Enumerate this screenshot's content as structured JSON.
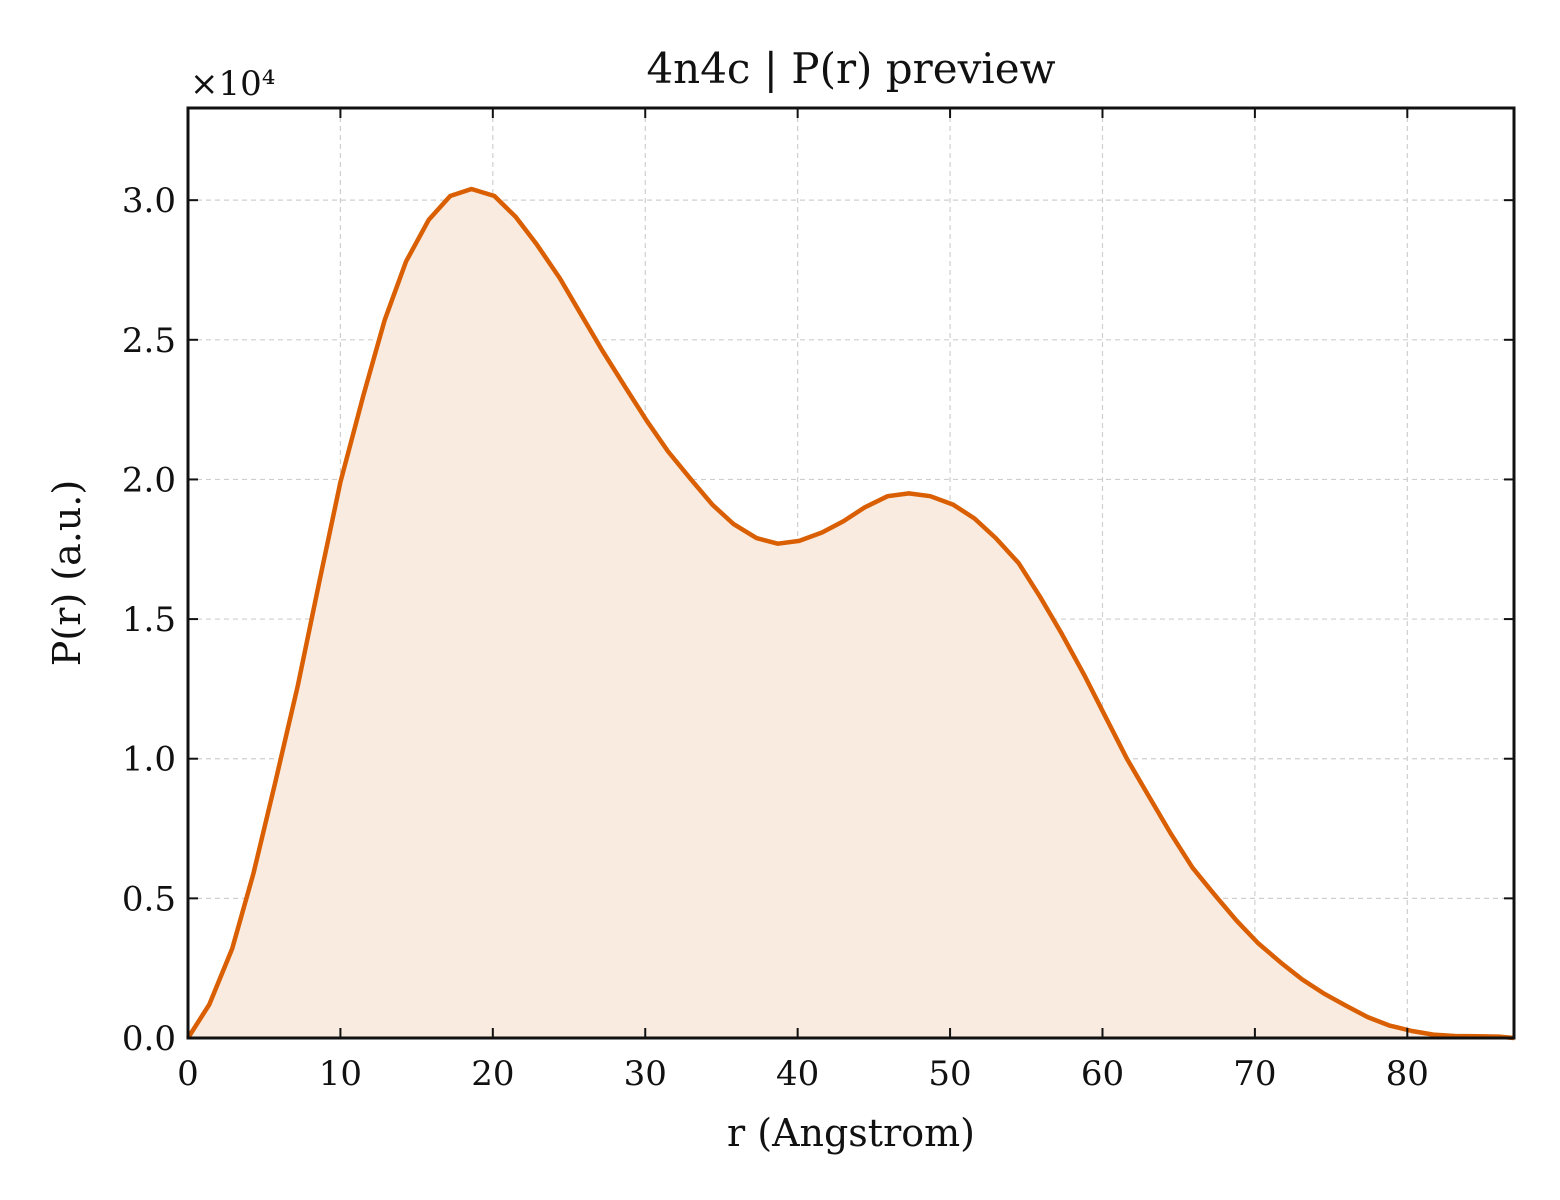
{
  "chart_data": {
    "type": "area",
    "title": "4n4c | P(r) preview",
    "xlabel": "r (Angstrom)",
    "ylabel": "P(r) (a.u.)",
    "offset_text": "×10⁴",
    "xlim": [
      0,
      87
    ],
    "ylim": [
      0,
      33300
    ],
    "x_ticks": [
      0,
      10,
      20,
      30,
      40,
      50,
      60,
      70,
      80
    ],
    "x_tick_labels": [
      "0",
      "10",
      "20",
      "30",
      "40",
      "50",
      "60",
      "70",
      "80"
    ],
    "y_ticks": [
      0,
      5000,
      10000,
      15000,
      20000,
      25000,
      30000
    ],
    "y_tick_labels": [
      "0.0",
      "0.5",
      "1.0",
      "1.5",
      "2.0",
      "2.5",
      "3.0"
    ],
    "grid": true,
    "colors": {
      "line": "#d95f02",
      "fill": "#f9ebe0"
    },
    "series": [
      {
        "x": [
          0,
          1.4,
          2.9,
          4.3,
          5.7,
          7.2,
          8.6,
          10.0,
          11.5,
          12.9,
          14.3,
          15.8,
          17.2,
          18.6,
          20.1,
          21.5,
          22.9,
          24.4,
          25.8,
          27.2,
          28.7,
          30.1,
          31.5,
          33.0,
          34.4,
          35.8,
          37.3,
          38.7,
          40.1,
          41.6,
          43.0,
          44.4,
          45.9,
          47.3,
          48.7,
          50.2,
          51.6,
          53.0,
          54.5,
          55.9,
          57.3,
          58.8,
          60.2,
          61.6,
          63.1,
          64.5,
          65.9,
          67.4,
          68.8,
          70.2,
          71.7,
          73.1,
          74.5,
          76.0,
          77.4,
          78.8,
          80.3,
          81.7,
          83.1,
          84.6,
          86.0,
          87.0
        ],
        "y": [
          0,
          1200,
          3200,
          5900,
          9100,
          12600,
          16300,
          19900,
          23000,
          25700,
          27800,
          29300,
          30150,
          30400,
          30150,
          29400,
          28400,
          27200,
          25900,
          24600,
          23300,
          22100,
          21000,
          20000,
          19100,
          18400,
          17900,
          17700,
          17800,
          18100,
          18500,
          19000,
          19400,
          19500,
          19400,
          19100,
          18600,
          17900,
          17000,
          15800,
          14500,
          13000,
          11500,
          10000,
          8600,
          7300,
          6100,
          5100,
          4200,
          3400,
          2700,
          2100,
          1600,
          1150,
          750,
          450,
          250,
          120,
          70,
          60,
          50,
          0
        ]
      }
    ]
  }
}
